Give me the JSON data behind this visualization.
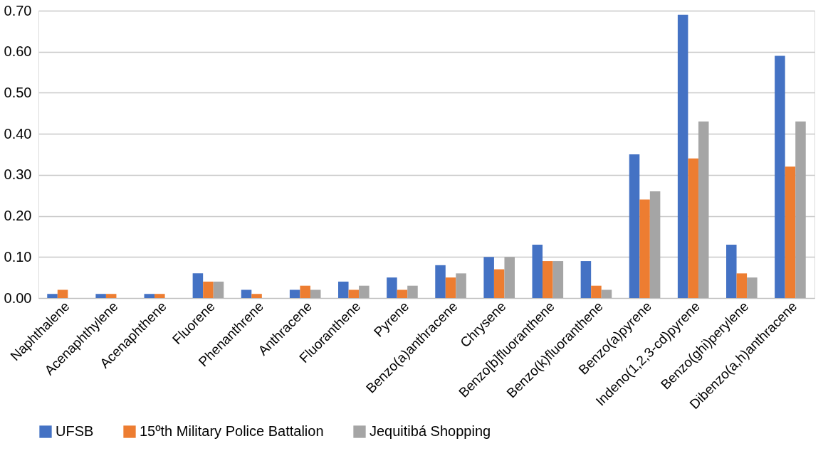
{
  "chart_data": {
    "type": "bar",
    "categories": [
      "Naphthalene",
      "Acenaphthylene",
      "Acenaphthene",
      "Fluorene",
      "Phenanthrene",
      "Anthracene",
      "Fluoranthene",
      "Pyrene",
      "Benzo(a)anthracene",
      "Chrysene",
      "Benzo[b]fluoranthene",
      "Benzo(k)fluoranthene",
      "Benzo(a)pyrene",
      "Indeno(1,2,3-cd)pyrene",
      "Benzo(ghi)perylene",
      "Dibenzo(a,h)anthracene"
    ],
    "series": [
      {
        "name": "UFSB",
        "color": "#4472c4",
        "values": [
          0.01,
          0.01,
          0.01,
          0.06,
          0.02,
          0.02,
          0.04,
          0.05,
          0.08,
          0.1,
          0.13,
          0.09,
          0.35,
          0.69,
          0.13,
          0.59
        ]
      },
      {
        "name": "15ºth Military Police Battalion",
        "color": "#ed7d31",
        "values": [
          0.02,
          0.01,
          0.01,
          0.04,
          0.01,
          0.03,
          0.02,
          0.02,
          0.05,
          0.07,
          0.09,
          0.03,
          0.24,
          0.34,
          0.06,
          0.32
        ]
      },
      {
        "name": "Jequitibá Shopping",
        "color": "#a5a5a5",
        "values": [
          null,
          null,
          null,
          0.04,
          0,
          0.02,
          0.03,
          0.03,
          0.06,
          0.1,
          0.09,
          0.02,
          0.26,
          0.43,
          0.05,
          0.43
        ]
      }
    ],
    "ylim": [
      0,
      0.7
    ],
    "yticks": [
      {
        "value": 0,
        "label": "0.00"
      },
      {
        "value": 0.1,
        "label": "0.10"
      },
      {
        "value": 0.2,
        "label": "0.20"
      },
      {
        "value": 0.3,
        "label": "0.30"
      },
      {
        "value": 0.4,
        "label": "0.40"
      },
      {
        "value": 0.5,
        "label": "0.50"
      },
      {
        "value": 0.6,
        "label": "0.60"
      },
      {
        "value": 0.7,
        "label": "0.70"
      }
    ],
    "grid": "y",
    "legend": "bottom"
  }
}
